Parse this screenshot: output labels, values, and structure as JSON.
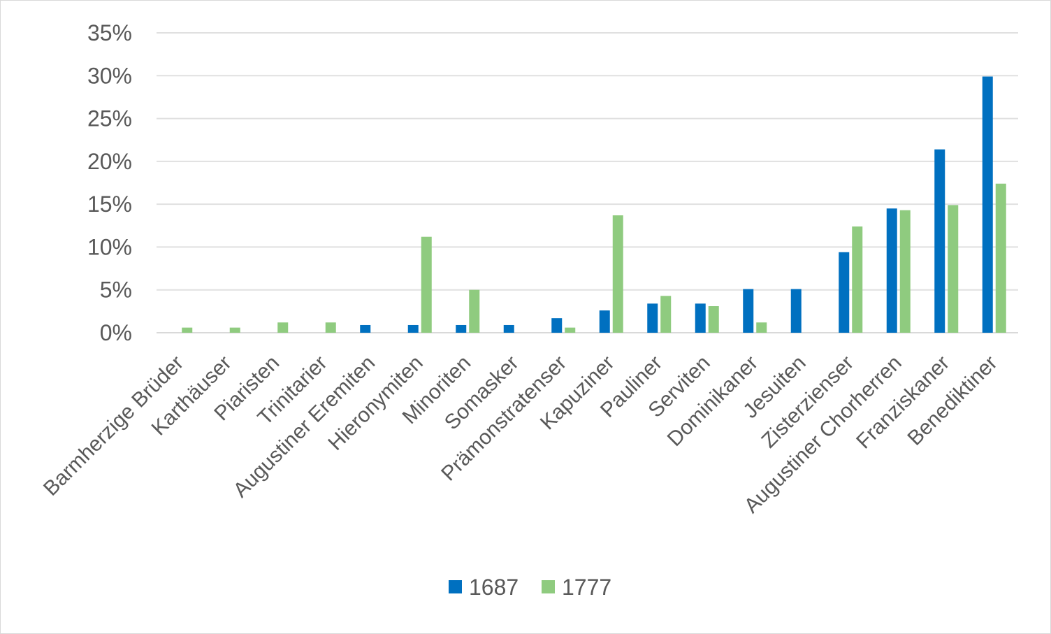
{
  "chart_data": {
    "type": "bar",
    "title": "",
    "xlabel": "",
    "ylabel": "",
    "ylim": [
      0,
      35
    ],
    "y_ticks": [
      "0%",
      "5%",
      "10%",
      "15%",
      "20%",
      "25%",
      "30%",
      "35%"
    ],
    "grid": true,
    "legend_position": "bottom",
    "categories": [
      "Barmherzige Brüder",
      "Karthäuser",
      "Piaristen",
      "Trinitarier",
      "Augustiner Eremiten",
      "Hieronymiten",
      "Minoriten",
      "Somasker",
      "Prämonstratenser",
      "Kapuziner",
      "Pauliner",
      "Serviten",
      "Dominikaner",
      "Jesuiten",
      "Zisterzienser",
      "Augustiner Chorherren",
      "Franziskaner",
      "Benediktiner"
    ],
    "series": [
      {
        "name": "1687",
        "color": "#0070c0",
        "values": [
          0,
          0,
          0,
          0,
          0.9,
          0.9,
          0.9,
          0.9,
          1.7,
          2.6,
          3.4,
          3.4,
          5.1,
          5.1,
          9.4,
          14.5,
          21.4,
          29.9
        ]
      },
      {
        "name": "1777",
        "color": "#8fcb7f",
        "values": [
          0.6,
          0.6,
          1.2,
          1.2,
          0,
          11.2,
          5.0,
          0,
          0.6,
          13.7,
          4.3,
          3.1,
          1.2,
          0,
          12.4,
          14.3,
          14.9,
          17.4
        ]
      }
    ]
  }
}
